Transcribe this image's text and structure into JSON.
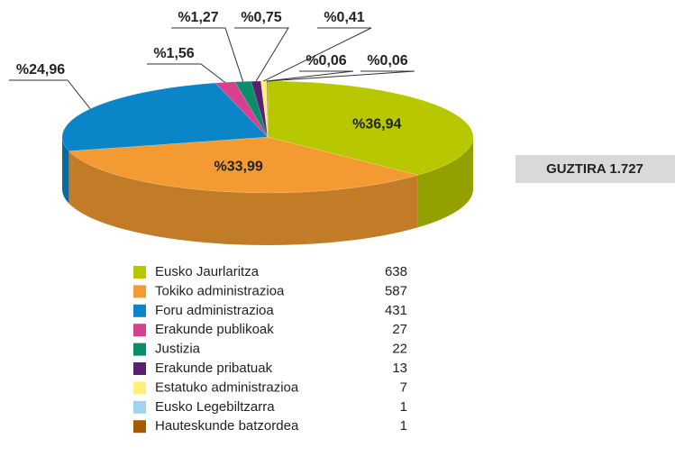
{
  "chart_data": {
    "type": "pie3d",
    "categories": [
      "Eusko Jaurlaritza",
      "Tokiko administrazioa",
      "Foru administrazioa",
      "Erakunde publikoak",
      "Justizia",
      "Erakunde pribatuak",
      "Estatuko administrazioa",
      "Eusko Legebiltzarra",
      "Hauteskunde batzordea"
    ],
    "values": [
      36.94,
      33.99,
      24.96,
      1.56,
      1.27,
      0.75,
      0.41,
      0.06,
      0.06
    ],
    "value_labels": [
      "%36,94",
      "%33,99",
      "%24,96",
      "%1,56",
      "%1,27",
      "%0,75",
      "%0,41",
      "%0,06",
      "%0,06"
    ],
    "counts": [
      638,
      587,
      431,
      27,
      22,
      13,
      7,
      1,
      1
    ],
    "colors": [
      "#b8c800",
      "#f39b32",
      "#0a86c8",
      "#d6418f",
      "#0a8d6b",
      "#5b1f70",
      "#fff07a",
      "#9fd3ef",
      "#a65a00"
    ],
    "total": "GUZTIRA 1.727"
  }
}
